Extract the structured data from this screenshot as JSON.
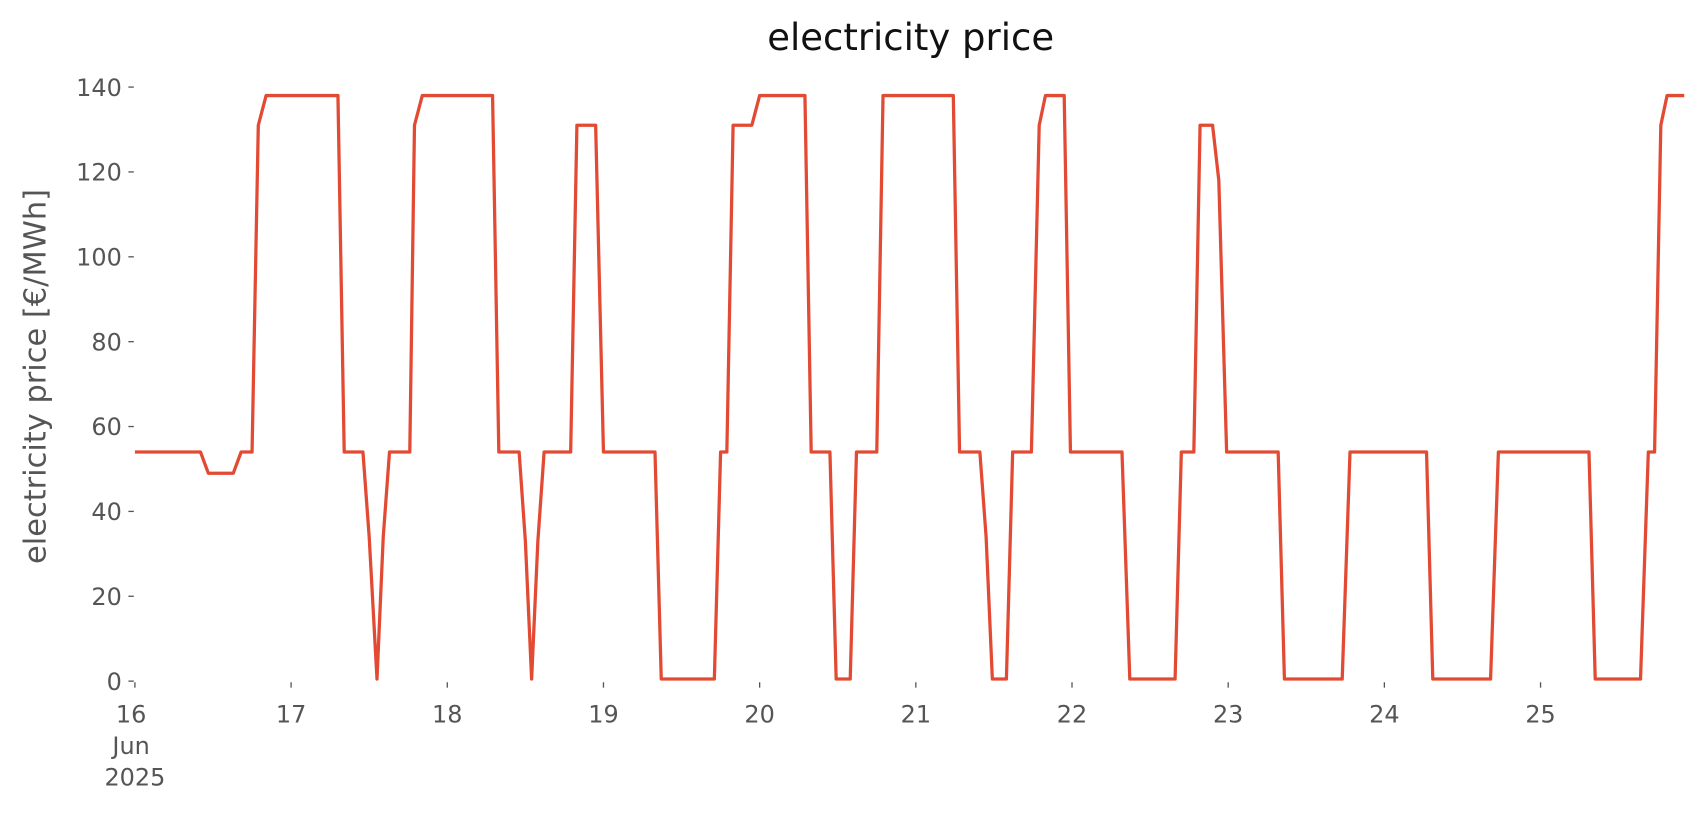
{
  "chart_data": {
    "type": "line",
    "title": "electricity price",
    "ylabel": "electricity price [€/MWh]",
    "x": [
      16.0,
      16.42,
      16.47,
      16.63,
      16.68,
      16.75,
      16.79,
      16.84,
      17.3,
      17.34,
      17.46,
      17.5,
      17.55,
      17.59,
      17.63,
      17.76,
      17.79,
      17.84,
      18.29,
      18.33,
      18.46,
      18.5,
      18.54,
      18.58,
      18.62,
      18.79,
      18.83,
      18.95,
      19.0,
      19.33,
      19.37,
      19.71,
      19.75,
      19.79,
      19.83,
      19.95,
      20.0,
      20.29,
      20.33,
      20.45,
      20.49,
      20.58,
      20.62,
      20.75,
      20.79,
      21.24,
      21.28,
      21.41,
      21.45,
      21.49,
      21.58,
      21.62,
      21.74,
      21.79,
      21.83,
      21.95,
      21.99,
      22.32,
      22.37,
      22.66,
      22.7,
      22.78,
      22.82,
      22.9,
      22.94,
      22.99,
      23.32,
      23.36,
      23.73,
      23.78,
      24.27,
      24.31,
      24.68,
      24.73,
      25.31,
      25.35,
      25.64,
      25.69,
      25.73,
      25.77,
      25.81,
      25.92
    ],
    "series": [
      {
        "name": "electricity price",
        "color": "#e24a33",
        "values": [
          54,
          54,
          49,
          49,
          54,
          54,
          131,
          138,
          138,
          54,
          54,
          34,
          0.5,
          34,
          54,
          54,
          131,
          138,
          138,
          54,
          54,
          33,
          0.5,
          33,
          54,
          54,
          131,
          131,
          54,
          54,
          0.5,
          0.5,
          54,
          54,
          131,
          131,
          138,
          138,
          54,
          54,
          0.5,
          0.5,
          54,
          54,
          138,
          138,
          54,
          54,
          34,
          0.5,
          0.5,
          54,
          54,
          131,
          138,
          138,
          54,
          54,
          0.5,
          0.5,
          54,
          54,
          131,
          131,
          118,
          54,
          54,
          0.5,
          0.5,
          54,
          54,
          0.5,
          0.5,
          54,
          54,
          0.5,
          0.5,
          54,
          54,
          131,
          138,
          138
        ]
      }
    ],
    "xlim": [
      16,
      25.92
    ],
    "xticks": [
      {
        "value": 16,
        "label": "16 Jun 2025"
      },
      17,
      18,
      19,
      20,
      21,
      22,
      23,
      24,
      25
    ],
    "ylim": [
      0,
      140
    ],
    "yticks": [
      0,
      20,
      40,
      60,
      80,
      100,
      120,
      140
    ],
    "grid": false
  }
}
